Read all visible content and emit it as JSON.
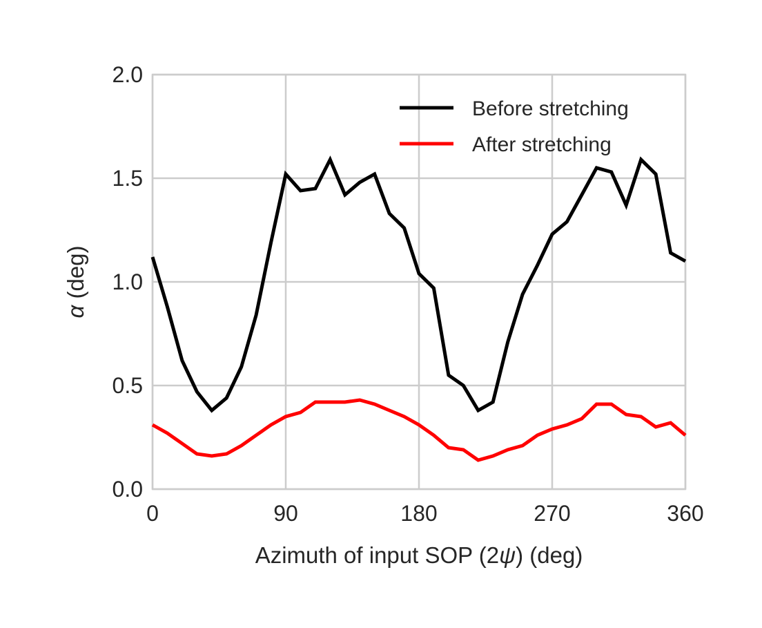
{
  "chart_data": {
    "type": "line",
    "xlabel_parts": [
      "Azimuth of input SOP (2",
      "ψ",
      ") (deg)"
    ],
    "ylabel_parts": [
      "α",
      " (deg)"
    ],
    "xlim": [
      0,
      360
    ],
    "ylim": [
      0,
      2.0
    ],
    "xticks": [
      0,
      90,
      180,
      270,
      360
    ],
    "xtick_labels": [
      "0",
      "90",
      "180",
      "270",
      "360"
    ],
    "yticks": [
      0,
      0.5,
      1.0,
      1.5,
      2.0
    ],
    "ytick_labels": [
      "0.0",
      "0.5",
      "1.0",
      "1.5",
      "2.0"
    ],
    "grid": true,
    "legend_position": "top-right",
    "x": [
      0,
      10,
      20,
      30,
      40,
      50,
      60,
      70,
      80,
      90,
      100,
      110,
      120,
      130,
      140,
      150,
      160,
      170,
      180,
      190,
      200,
      210,
      220,
      230,
      240,
      250,
      260,
      270,
      280,
      290,
      300,
      310,
      320,
      330,
      340,
      350,
      360
    ],
    "series": [
      {
        "name": "Before stretching",
        "color": "#000000",
        "values": [
          1.12,
          0.88,
          0.62,
          0.47,
          0.38,
          0.44,
          0.59,
          0.84,
          1.19,
          1.52,
          1.44,
          1.45,
          1.59,
          1.42,
          1.48,
          1.52,
          1.33,
          1.26,
          1.04,
          0.97,
          0.55,
          0.5,
          0.38,
          0.42,
          0.71,
          0.94,
          1.08,
          1.23,
          1.29,
          1.42,
          1.55,
          1.53,
          1.37,
          1.59,
          1.52,
          1.14,
          1.1
        ]
      },
      {
        "name": "After stretching",
        "color": "#ff0000",
        "values": [
          0.31,
          0.27,
          0.22,
          0.17,
          0.16,
          0.17,
          0.21,
          0.26,
          0.31,
          0.35,
          0.37,
          0.42,
          0.42,
          0.42,
          0.43,
          0.41,
          0.38,
          0.35,
          0.31,
          0.26,
          0.2,
          0.19,
          0.14,
          0.16,
          0.19,
          0.21,
          0.26,
          0.29,
          0.31,
          0.34,
          0.41,
          0.41,
          0.36,
          0.35,
          0.3,
          0.32,
          0.26
        ]
      }
    ]
  }
}
